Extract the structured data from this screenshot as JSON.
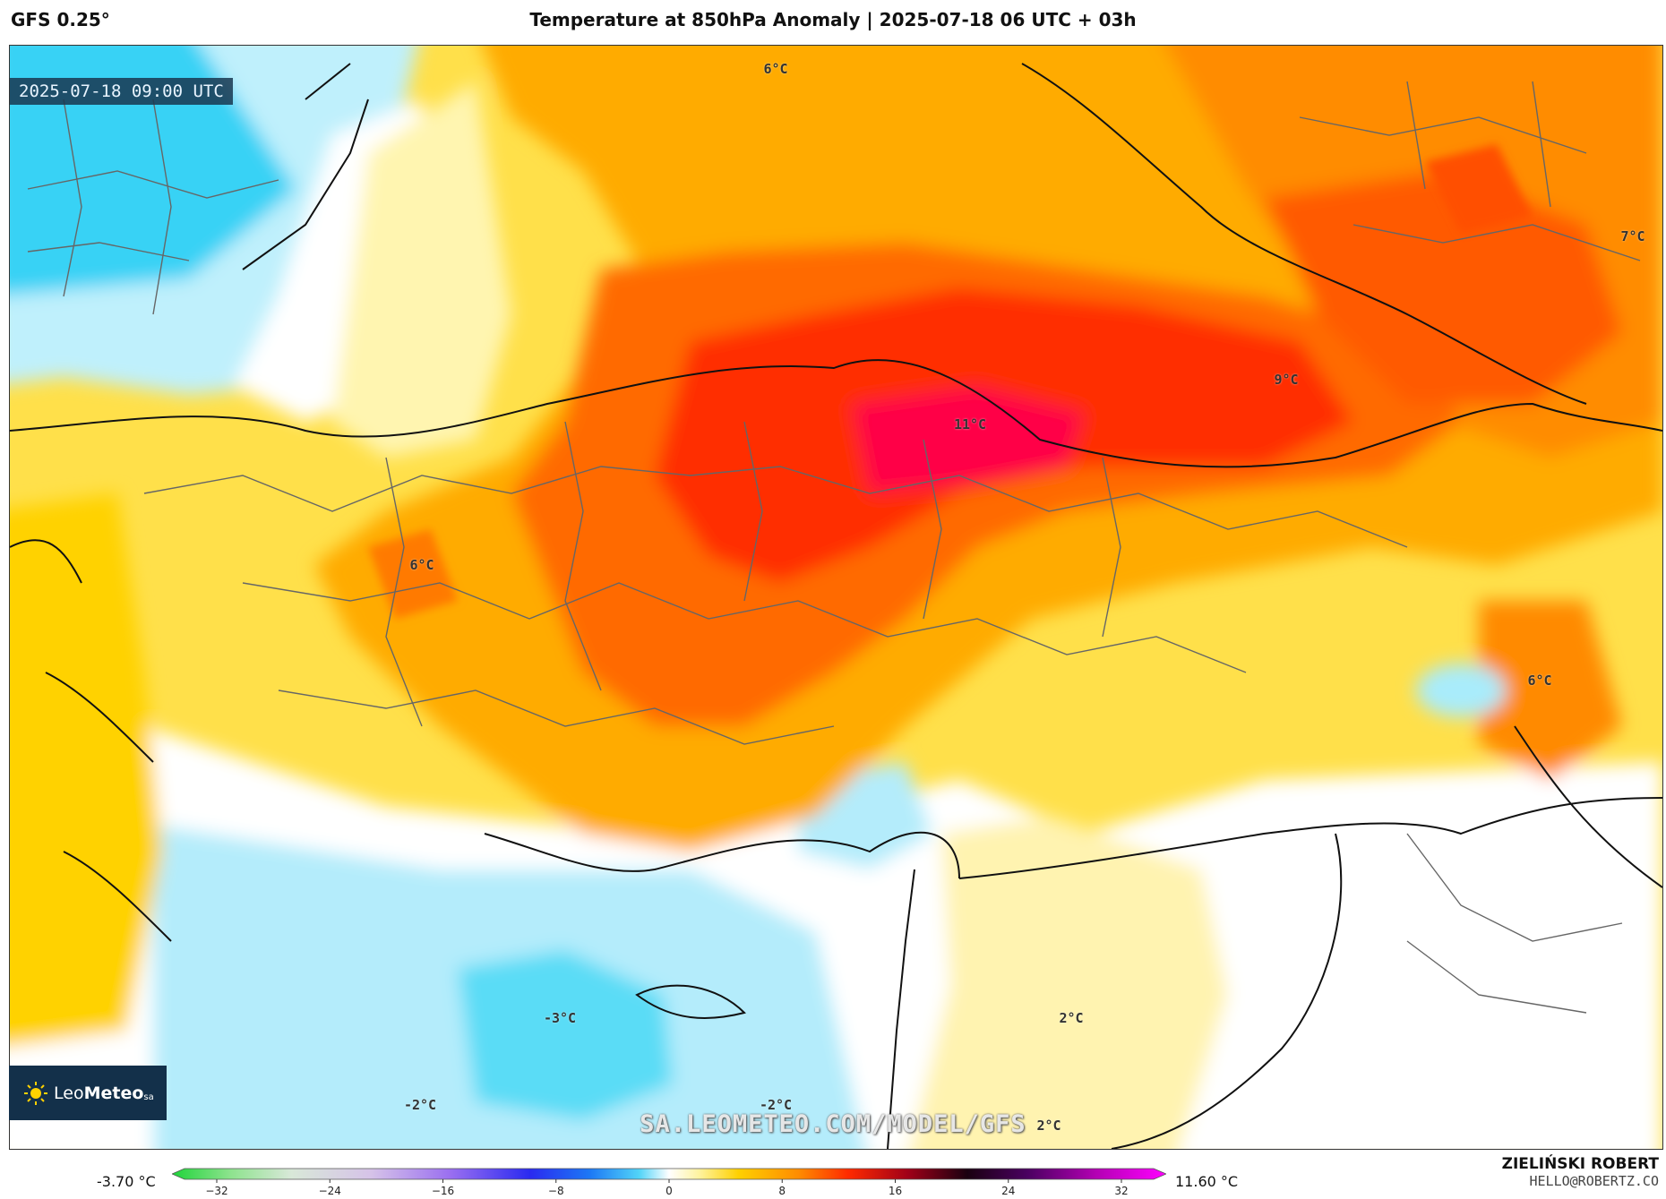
{
  "header": {
    "model": "GFS 0.25°",
    "title": "Temperature at 850hPa Anomaly | 2025-07-18 06 UTC + 03h"
  },
  "map": {
    "valid_time": "2025-07-18 09:00 UTC",
    "watermark": "SA.LEOMETEO.COM/MODEL/GFS",
    "labels": [
      {
        "id": "6c-north",
        "text": "6°C"
      },
      {
        "id": "7c-east",
        "text": "7°C"
      },
      {
        "id": "9c-east",
        "text": "9°C"
      },
      {
        "id": "11c-center",
        "text": "11°C"
      },
      {
        "id": "6c-west",
        "text": "6°C"
      },
      {
        "id": "6c-southeast",
        "text": "6°C"
      },
      {
        "id": "m3c-sea",
        "text": "-3°C"
      },
      {
        "id": "2c-syria",
        "text": "2°C"
      },
      {
        "id": "m2c-west",
        "text": "-2°C"
      },
      {
        "id": "m2c-south",
        "text": "-2°C"
      },
      {
        "id": "2c-south",
        "text": "2°C"
      }
    ]
  },
  "logo": {
    "brand_light": "Leo",
    "brand_bold": "Meteo",
    "suffix": "sa"
  },
  "colorbar": {
    "min_label": "-3.70 °C",
    "max_label": "11.60 °C",
    "ticks": [
      "−32",
      "−24",
      "−16",
      "−8",
      "0",
      "8",
      "16",
      "24",
      "32"
    ]
  },
  "credit": {
    "name": "ZIELIŃSKI ROBERT",
    "email": "HELLO@ROBERTZ.CO"
  },
  "colors": {
    "cold_deep": "#4fd4f0",
    "cold": "#a9ecfb",
    "neutral": "#ffffff",
    "warm_light": "#fff2a8",
    "warm": "#ffd200",
    "orange": "#ffa500",
    "red": "#ff3000",
    "hot": "#ff0050"
  }
}
